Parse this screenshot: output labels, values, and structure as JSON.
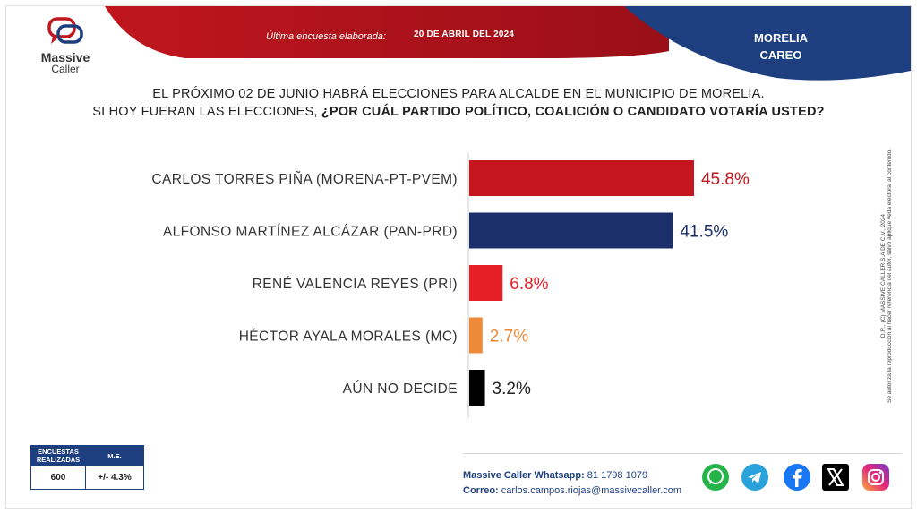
{
  "header": {
    "brand_name": "Massive",
    "brand_sub": "Caller",
    "survey_label": "Última encuesta elaborada:",
    "survey_date": "20 DE ABRIL DEL 2024",
    "region_line1": "MORELIA",
    "region_line2": "CAREO"
  },
  "question": {
    "line1": "EL PRÓXIMO 02 DE JUNIO HABRÁ ELECCIONES PARA ALCALDE EN EL MUNICIPIO  DE MORELIA.",
    "line2_plain": "SI HOY FUERAN LAS ELECCIONES,",
    "line2_bold": "¿POR CUÁL PARTIDO POLÍTICO, COALICIÓN O CANDIDATO  VOTARÍA USTED?"
  },
  "chart_data": {
    "type": "bar",
    "orientation": "horizontal",
    "categories": [
      "CARLOS TORRES PIÑA (MORENA-PT-PVEM)",
      "ALFONSO MARTÍNEZ ALCÁZAR (PAN-PRD)",
      "RENÉ VALENCIA REYES (PRI)",
      "HÉCTOR AYALA MORALES (MC)",
      "AÚN NO DECIDE"
    ],
    "values": [
      45.8,
      41.5,
      6.8,
      2.7,
      3.2
    ],
    "value_labels": [
      "45.8%",
      "41.5%",
      "6.8%",
      "2.7%",
      "3.2%"
    ],
    "colors": [
      "#c4161c",
      "#1b2f6b",
      "#e61f26",
      "#ec8a3a",
      "#000000"
    ],
    "label_colors": [
      "#c4161c",
      "#1b2f6b",
      "#e61f26",
      "#ec8a3a",
      "#222222"
    ],
    "xlim": [
      0,
      100
    ],
    "grid": false
  },
  "side_note": {
    "line1": "D.R., (C) MASSIVE CALLER S.A DE C.V., 2024",
    "line2": "Se autoriza la reproducción al hacer referencia del autor, salvo aplique veda electoral al contenido."
  },
  "sample_table": {
    "header1": "ENCUESTAS REALIZADAS",
    "header2": "M.E.",
    "value1": "600",
    "value2": "+/- 4.3%"
  },
  "contact": {
    "whatsapp_label": "Massive Caller Whatsapp:",
    "whatsapp_value": "81 1798 1079",
    "email_label": "Correo:",
    "email_value": "carlos.campos.riojas@massivecaller.com"
  },
  "social_icons": [
    "whatsapp-icon",
    "telegram-icon",
    "facebook-icon",
    "x-icon",
    "instagram-icon"
  ],
  "theme": {
    "red": "#b3141c",
    "navy": "#1d3f80"
  }
}
